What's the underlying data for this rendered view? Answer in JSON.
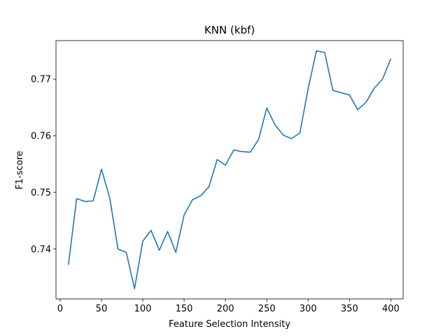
{
  "chart_data": {
    "type": "line",
    "title": "KNN (kbf)",
    "xlabel": "Feature Selection Intensity",
    "ylabel": "F1-score",
    "xlim": [
      -5,
      415
    ],
    "ylim": [
      0.7312,
      0.7768
    ],
    "xticks": [
      0,
      50,
      100,
      150,
      200,
      250,
      300,
      350,
      400
    ],
    "yticks": [
      0.74,
      0.75,
      0.76,
      0.77
    ],
    "ytick_labels": [
      "0.74",
      "0.75",
      "0.76",
      "0.77"
    ],
    "grid": false,
    "line_color": "#1f77b4",
    "series": [
      {
        "x": [
          10,
          20,
          30,
          40,
          50,
          60,
          70,
          80,
          90,
          100,
          110,
          120,
          130,
          140,
          150,
          160,
          170,
          180,
          190,
          200,
          210,
          220,
          230,
          240,
          250,
          260,
          270,
          280,
          290,
          300,
          310,
          320,
          330,
          340,
          350,
          360,
          370,
          380,
          390,
          400
        ],
        "values": [
          0.7372,
          0.7489,
          0.7484,
          0.7485,
          0.7541,
          0.749,
          0.74,
          0.7394,
          0.733,
          0.7414,
          0.7433,
          0.7398,
          0.7431,
          0.7394,
          0.746,
          0.7487,
          0.7494,
          0.751,
          0.7558,
          0.7548,
          0.7575,
          0.7572,
          0.7571,
          0.7593,
          0.7649,
          0.7619,
          0.7601,
          0.7595,
          0.7605,
          0.7683,
          0.775,
          0.7747,
          0.768,
          0.7676,
          0.7672,
          0.7646,
          0.7659,
          0.7684,
          0.77,
          0.7736
        ]
      }
    ]
  }
}
